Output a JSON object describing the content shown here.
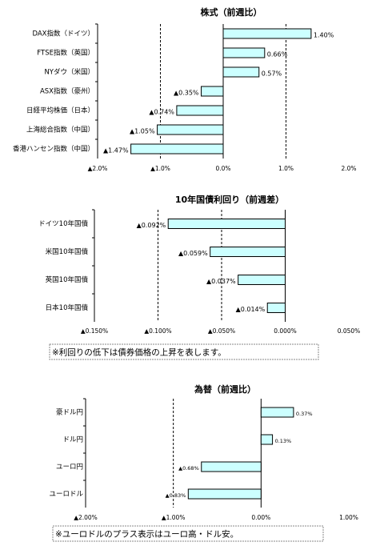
{
  "chart_data": [
    {
      "type": "bar",
      "orientation": "horizontal",
      "title": "株式（前週比）",
      "categories": [
        "DAX指数（ドイツ）",
        "FTSE指数（英国）",
        "NYダウ（米国）",
        "ASX指数（豪州）",
        "日経平均株価（日本）",
        "上海総合指数（中国）",
        "香港ハンセン指数（中国）"
      ],
      "values": [
        1.4,
        0.66,
        0.57,
        -0.35,
        -0.74,
        -1.05,
        -1.47
      ],
      "value_labels": [
        "1.40%",
        "0.66%",
        "0.57%",
        "▲0.35%",
        "▲0.74%",
        "▲1.05%",
        "▲1.47%"
      ],
      "color": "#ccffff",
      "xlim": [
        -2,
        2
      ],
      "xticks": [
        {
          "value": -2,
          "label": "▲2.0%"
        },
        {
          "value": -1,
          "label": "▲1.0%"
        },
        {
          "value": 0,
          "label": "0.0%"
        },
        {
          "value": 1,
          "label": "1.0%"
        },
        {
          "value": 2,
          "label": "2.0%"
        }
      ],
      "grid": true
    },
    {
      "type": "bar",
      "orientation": "horizontal",
      "title": "10年国債利回り（前週差）",
      "categories": [
        "ドイツ10年国債",
        "米国10年国債",
        "英国10年国債",
        "日本10年国債"
      ],
      "values": [
        -0.092,
        -0.059,
        -0.037,
        -0.014
      ],
      "value_labels": [
        "▲0.092%",
        "▲0.059%",
        "▲0.037%",
        "▲0.014%"
      ],
      "color": "#ccffff",
      "xlim": [
        -0.15,
        0.05
      ],
      "xticks": [
        {
          "value": -0.15,
          "label": "▲0.150%"
        },
        {
          "value": -0.1,
          "label": "▲0.100%"
        },
        {
          "value": -0.05,
          "label": "▲0.050%"
        },
        {
          "value": 0,
          "label": "0.000%"
        },
        {
          "value": 0.05,
          "label": "0.050%"
        }
      ],
      "grid": true,
      "note": "※利回りの低下は債券価格の上昇を表します。"
    },
    {
      "type": "bar",
      "orientation": "horizontal",
      "title": "為替（前週比）",
      "categories": [
        "豪ドル円",
        "ドル円",
        "ユーロ円",
        "ユーロドル"
      ],
      "values": [
        0.37,
        0.13,
        -0.68,
        -0.83
      ],
      "value_labels": [
        "0.37%",
        "0.13%",
        "▲0.68%",
        "▲0.83%"
      ],
      "color": "#ccffff",
      "xlim": [
        -2,
        1
      ],
      "xticks": [
        {
          "value": -2,
          "label": "▲2.00%"
        },
        {
          "value": -1,
          "label": "▲1.00%"
        },
        {
          "value": 0,
          "label": "0.00%"
        },
        {
          "value": 1,
          "label": "1.00%"
        }
      ],
      "grid": true,
      "note": "※ユーロドルのプラス表示はユーロ高・ドル安。"
    }
  ]
}
